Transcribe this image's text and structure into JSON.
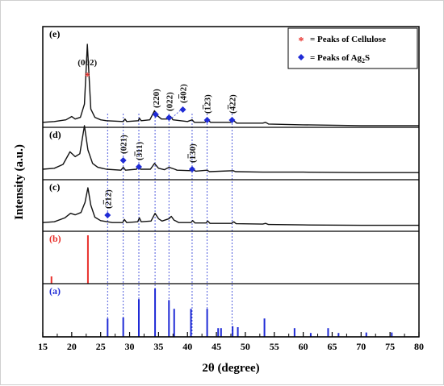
{
  "chart_data": {
    "type": "line",
    "xlabel": "2θ (degree)",
    "ylabel": "Intensity (a.u.)",
    "xlim": [
      15,
      80
    ],
    "x_ticks": [
      15,
      20,
      25,
      30,
      35,
      40,
      45,
      50,
      55,
      60,
      65,
      70,
      75,
      80
    ],
    "legend": {
      "placement": "top-right",
      "entries": [
        {
          "marker": "*",
          "color": "#e8302b",
          "label": "= Peaks of Cellulose"
        },
        {
          "marker": "◆",
          "color": "#1f2bd6",
          "label": "= Peaks of Ag₂S"
        }
      ]
    },
    "panels": [
      {
        "label": "(e)",
        "label_color": "#000000",
        "trace": [
          [
            15,
            0.06
          ],
          [
            17,
            0.07
          ],
          [
            19,
            0.09
          ],
          [
            20,
            0.13
          ],
          [
            20.6,
            0.1
          ],
          [
            21.5,
            0.12
          ],
          [
            22.2,
            0.28
          ],
          [
            22.7,
            1.0
          ],
          [
            23.3,
            0.22
          ],
          [
            24,
            0.12
          ],
          [
            25,
            0.09
          ],
          [
            26,
            0.08
          ],
          [
            28.9,
            0.07
          ],
          [
            29.2,
            0.1
          ],
          [
            29.5,
            0.07
          ],
          [
            31.5,
            0.08
          ],
          [
            31.7,
            0.11
          ],
          [
            32,
            0.08
          ],
          [
            33.5,
            0.09
          ],
          [
            34.3,
            0.2
          ],
          [
            34.8,
            0.14
          ],
          [
            35.5,
            0.1
          ],
          [
            36.8,
            0.1
          ],
          [
            37.1,
            0.13
          ],
          [
            37.5,
            0.09
          ],
          [
            40,
            0.07
          ],
          [
            40.8,
            0.09
          ],
          [
            41.2,
            0.06
          ],
          [
            43,
            0.06
          ],
          [
            43.5,
            0.09
          ],
          [
            44,
            0.06
          ],
          [
            47.5,
            0.06
          ],
          [
            48,
            0.08
          ],
          [
            48.5,
            0.05
          ],
          [
            53,
            0.05
          ],
          [
            53.5,
            0.06
          ],
          [
            54,
            0.04
          ],
          [
            60,
            0.03
          ],
          [
            70,
            0.02
          ],
          [
            80,
            0.02
          ]
        ],
        "annotations": [
          {
            "x": 22.7,
            "text": "(002)",
            "marker": "*"
          },
          {
            "x": 34.5,
            "text": "(220)",
            "marker": "◆"
          },
          {
            "x": 36.8,
            "text": "(022)",
            "marker": "◆"
          },
          {
            "x": 39.2,
            "text": "(402)",
            "bar": "4",
            "marker": "◆"
          },
          {
            "x": 43.4,
            "text": "(123)",
            "bar": "1",
            "marker": "◆"
          },
          {
            "x": 47.7,
            "text": "(422)",
            "bar": "4",
            "marker": "◆"
          }
        ]
      },
      {
        "label": "(d)",
        "label_color": "#000000",
        "trace": [
          [
            15,
            0.1
          ],
          [
            17,
            0.12
          ],
          [
            18.5,
            0.2
          ],
          [
            19.7,
            0.46
          ],
          [
            20.6,
            0.36
          ],
          [
            21.4,
            0.42
          ],
          [
            22.2,
            1.0
          ],
          [
            22.8,
            0.5
          ],
          [
            23.6,
            0.22
          ],
          [
            24.5,
            0.14
          ],
          [
            26,
            0.1
          ],
          [
            28.5,
            0.08
          ],
          [
            28.9,
            0.14
          ],
          [
            29.3,
            0.08
          ],
          [
            31.2,
            0.1
          ],
          [
            31.5,
            0.16
          ],
          [
            31.9,
            0.1
          ],
          [
            33.6,
            0.1
          ],
          [
            34.3,
            0.22
          ],
          [
            35,
            0.12
          ],
          [
            36,
            0.09
          ],
          [
            36.8,
            0.14
          ],
          [
            37.8,
            0.1
          ],
          [
            38.2,
            0.08
          ],
          [
            40.7,
            0.07
          ],
          [
            41,
            0.09
          ],
          [
            41.4,
            0.06
          ],
          [
            43.4,
            0.08
          ],
          [
            43.8,
            0.05
          ],
          [
            47.9,
            0.07
          ],
          [
            48.3,
            0.05
          ],
          [
            53,
            0.04
          ],
          [
            60,
            0.04
          ],
          [
            70,
            0.03
          ],
          [
            80,
            0.03
          ]
        ],
        "annotations": [
          {
            "x": 28.9,
            "text": "(021)",
            "marker": "◆"
          },
          {
            "x": 31.6,
            "text": "(311)",
            "bar": "3",
            "marker": "◆"
          },
          {
            "x": 40.8,
            "text": "(130)",
            "bar": "1",
            "marker": "◆"
          }
        ]
      },
      {
        "label": "(c)",
        "label_color": "#000000",
        "trace": [
          [
            15,
            0.1
          ],
          [
            17,
            0.12
          ],
          [
            18.8,
            0.22
          ],
          [
            19.8,
            0.34
          ],
          [
            20.6,
            0.3
          ],
          [
            21.6,
            0.36
          ],
          [
            22.3,
            0.62
          ],
          [
            22.8,
            1.0
          ],
          [
            23.3,
            0.55
          ],
          [
            24,
            0.24
          ],
          [
            25,
            0.15
          ],
          [
            26.2,
            0.12
          ],
          [
            27,
            0.1
          ],
          [
            28.8,
            0.1
          ],
          [
            29.1,
            0.18
          ],
          [
            29.5,
            0.1
          ],
          [
            31.4,
            0.12
          ],
          [
            31.7,
            0.22
          ],
          [
            32,
            0.12
          ],
          [
            33.7,
            0.14
          ],
          [
            34.4,
            0.34
          ],
          [
            35,
            0.2
          ],
          [
            35.6,
            0.14
          ],
          [
            36.8,
            0.2
          ],
          [
            37.2,
            0.26
          ],
          [
            37.7,
            0.16
          ],
          [
            38,
            0.14
          ],
          [
            38.5,
            0.1
          ],
          [
            40.6,
            0.1
          ],
          [
            40.9,
            0.15
          ],
          [
            41.3,
            0.09
          ],
          [
            43.2,
            0.09
          ],
          [
            43.5,
            0.14
          ],
          [
            43.9,
            0.08
          ],
          [
            47.6,
            0.08
          ],
          [
            48,
            0.12
          ],
          [
            48.4,
            0.07
          ],
          [
            53,
            0.06
          ],
          [
            53.5,
            0.08
          ],
          [
            54,
            0.05
          ],
          [
            60,
            0.04
          ],
          [
            70,
            0.03
          ],
          [
            80,
            0.03
          ]
        ],
        "annotations": [
          {
            "x": 26.2,
            "text": "(212)",
            "bar": "2",
            "marker": "◆"
          }
        ]
      },
      {
        "label": "(b)",
        "label_color": "#e8302b",
        "sticks": [
          [
            16.5,
            0.15
          ],
          [
            22.8,
            1.0
          ]
        ],
        "stick_color": "#e8302b"
      },
      {
        "label": "(a)",
        "label_color": "#1f2bd6",
        "sticks": [
          [
            26.2,
            0.38
          ],
          [
            28.9,
            0.4
          ],
          [
            31.6,
            0.78
          ],
          [
            34.4,
            1.0
          ],
          [
            36.8,
            0.76
          ],
          [
            37.7,
            0.58
          ],
          [
            40.6,
            0.58
          ],
          [
            43.4,
            0.58
          ],
          [
            45.3,
            0.18
          ],
          [
            45.8,
            0.18
          ],
          [
            47.8,
            0.22
          ],
          [
            48.7,
            0.2
          ],
          [
            53.3,
            0.38
          ],
          [
            58.5,
            0.18
          ],
          [
            61.3,
            0.08
          ],
          [
            64.3,
            0.18
          ],
          [
            66.1,
            0.08
          ],
          [
            70.9,
            0.09
          ],
          [
            75.3,
            0.09
          ]
        ],
        "stick_color": "#1f2bd6"
      }
    ],
    "guide_lines_x": [
      26.2,
      28.9,
      31.6,
      34.4,
      36.8,
      40.8,
      43.4,
      47.7
    ]
  }
}
